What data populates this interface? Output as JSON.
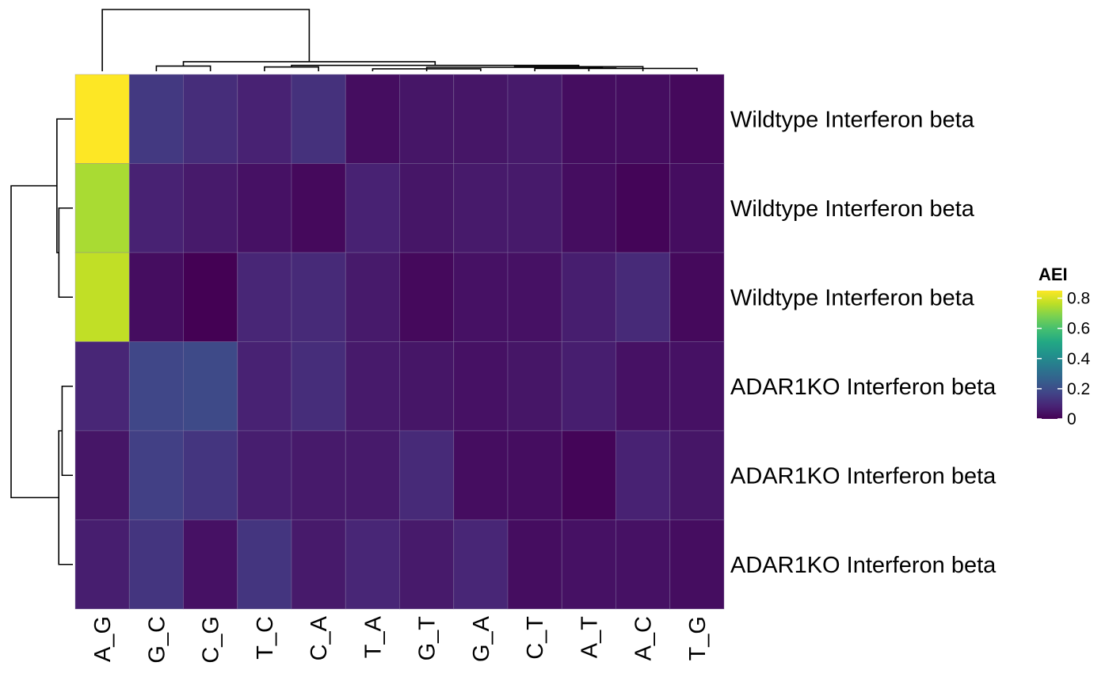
{
  "chart_data": {
    "type": "heatmap",
    "title": "",
    "colorscale": "viridis",
    "columns": [
      "A_G",
      "G_C",
      "C_G",
      "T_C",
      "C_A",
      "T_A",
      "G_T",
      "G_A",
      "C_T",
      "A_T",
      "A_C",
      "T_G"
    ],
    "rows": [
      "Wildtype Interferon beta",
      "Wildtype Interferon beta",
      "Wildtype Interferon beta",
      "ADAR1KO Interferon beta",
      "ADAR1KO Interferon beta",
      "ADAR1KO Interferon beta"
    ],
    "values": [
      [
        0.85,
        0.14,
        0.11,
        0.08,
        0.12,
        0.03,
        0.05,
        0.05,
        0.06,
        0.03,
        0.03,
        0.02
      ],
      [
        0.74,
        0.08,
        0.06,
        0.04,
        0.02,
        0.08,
        0.05,
        0.06,
        0.06,
        0.03,
        0.01,
        0.03
      ],
      [
        0.77,
        0.03,
        0.0,
        0.09,
        0.1,
        0.06,
        0.02,
        0.04,
        0.04,
        0.07,
        0.1,
        0.02
      ],
      [
        0.09,
        0.18,
        0.19,
        0.08,
        0.11,
        0.06,
        0.05,
        0.04,
        0.05,
        0.07,
        0.04,
        0.04
      ],
      [
        0.05,
        0.16,
        0.13,
        0.07,
        0.06,
        0.06,
        0.1,
        0.03,
        0.03,
        0.01,
        0.08,
        0.05
      ],
      [
        0.07,
        0.13,
        0.04,
        0.13,
        0.06,
        0.09,
        0.06,
        0.09,
        0.03,
        0.04,
        0.04,
        0.03
      ]
    ],
    "legend": {
      "title": "AEI",
      "ticks": [
        "0",
        "0.2",
        "0.4",
        "0.6",
        "0.8"
      ],
      "tick_values": [
        0,
        0.2,
        0.4,
        0.6,
        0.8
      ],
      "range": [
        0,
        0.85
      ],
      "placement": "right"
    },
    "row_dendrogram": true,
    "column_dendrogram": true
  }
}
